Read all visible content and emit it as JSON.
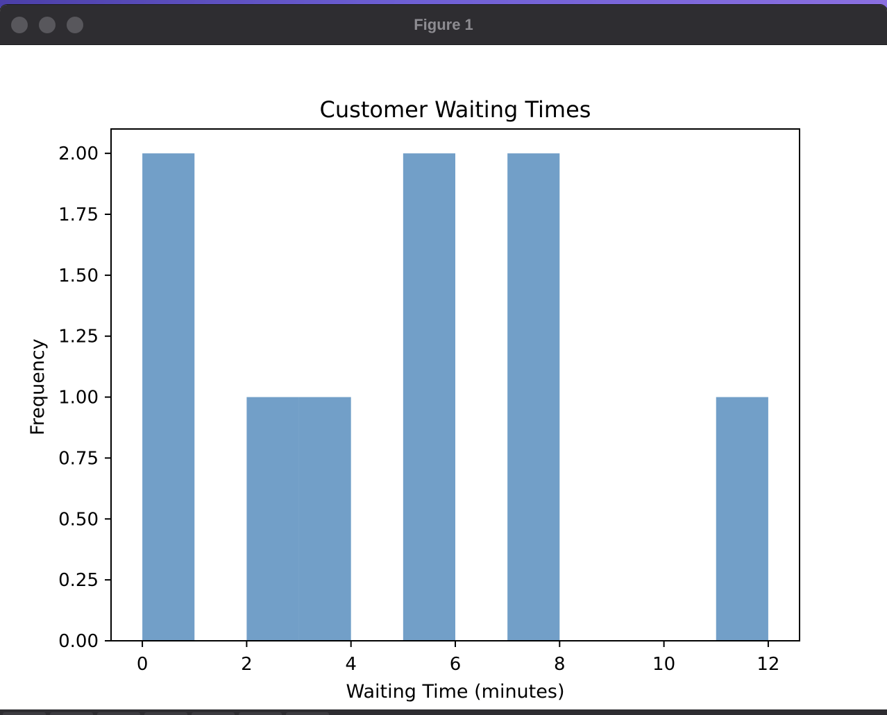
{
  "window": {
    "title": "Figure 1"
  },
  "chart_data": {
    "type": "bar",
    "title": "Customer Waiting Times",
    "xlabel": "Waiting Time (minutes)",
    "ylabel": "Frequency",
    "xlim": [
      -0.6,
      12.6
    ],
    "ylim": [
      0,
      2.1
    ],
    "xticks": [
      0,
      2,
      4,
      6,
      8,
      10,
      12
    ],
    "xtick_labels": [
      "0",
      "2",
      "4",
      "6",
      "8",
      "10",
      "12"
    ],
    "yticks": [
      0,
      0.25,
      0.5,
      0.75,
      1.0,
      1.25,
      1.5,
      1.75,
      2.0
    ],
    "ytick_labels": [
      "0.00",
      "0.25",
      "0.50",
      "0.75",
      "1.00",
      "1.25",
      "1.50",
      "1.75",
      "2.00"
    ],
    "bars": [
      {
        "x0": 0,
        "x1": 1,
        "value": 2
      },
      {
        "x0": 2,
        "x1": 3,
        "value": 1
      },
      {
        "x0": 3,
        "x1": 4,
        "value": 1
      },
      {
        "x0": 5,
        "x1": 6,
        "value": 2
      },
      {
        "x0": 7,
        "x1": 8,
        "value": 2
      },
      {
        "x0": 11,
        "x1": 12,
        "value": 1
      }
    ],
    "bar_color": "#729fc8",
    "grid": false,
    "legend": "none"
  }
}
